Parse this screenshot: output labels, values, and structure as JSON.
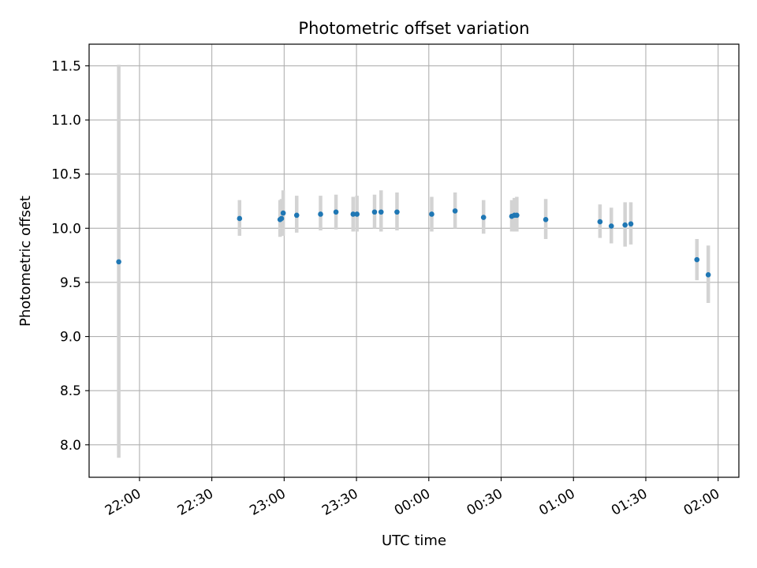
{
  "chart_data": {
    "type": "scatter",
    "title": "Photometric offset variation",
    "xlabel": "UTC time",
    "ylabel": "Photometric offset",
    "x_tick_labels": [
      "22:00",
      "22:30",
      "23:00",
      "23:30",
      "00:00",
      "00:30",
      "01:00",
      "01:30",
      "02:00"
    ],
    "x_tick_minutes": [
      0,
      30,
      60,
      90,
      120,
      150,
      180,
      210,
      240
    ],
    "y_tick_labels": [
      "8.0",
      "8.5",
      "9.0",
      "9.5",
      "10.0",
      "10.5",
      "11.0",
      "11.5"
    ],
    "y_tick_values": [
      8.0,
      8.5,
      9.0,
      9.5,
      10.0,
      10.5,
      11.0,
      11.5
    ],
    "xlim_minutes": [
      -20.9,
      248.6
    ],
    "ylim": [
      7.7,
      11.7
    ],
    "grid": true,
    "marker_color": "#1f77b4",
    "errorbar_color": "#d3d3d3",
    "points": [
      {
        "time": "21:51",
        "x": -8.6,
        "y": 9.69,
        "err_low": 7.88,
        "err_high": 11.51
      },
      {
        "time": "22:41",
        "x": 41.5,
        "y": 10.09,
        "err_low": 9.93,
        "err_high": 10.26
      },
      {
        "time": "22:58",
        "x": 58.3,
        "y": 10.08,
        "err_low": 9.92,
        "err_high": 10.26
      },
      {
        "time": "22:58",
        "x": 58.9,
        "y": 10.09,
        "err_low": 9.93,
        "err_high": 10.27
      },
      {
        "time": "22:59",
        "x": 59.6,
        "y": 10.14,
        "err_low": 9.93,
        "err_high": 10.35
      },
      {
        "time": "23:05",
        "x": 65.2,
        "y": 10.12,
        "err_low": 9.96,
        "err_high": 10.3
      },
      {
        "time": "23:15",
        "x": 75.1,
        "y": 10.13,
        "err_low": 9.98,
        "err_high": 10.3
      },
      {
        "time": "23:21",
        "x": 81.5,
        "y": 10.15,
        "err_low": 9.99,
        "err_high": 10.31
      },
      {
        "time": "23:28",
        "x": 88.6,
        "y": 10.13,
        "err_low": 9.97,
        "err_high": 10.29
      },
      {
        "time": "23:30",
        "x": 90.2,
        "y": 10.13,
        "err_low": 9.97,
        "err_high": 10.3
      },
      {
        "time": "23:37",
        "x": 97.5,
        "y": 10.15,
        "err_low": 10.0,
        "err_high": 10.31
      },
      {
        "time": "23:40",
        "x": 100.2,
        "y": 10.15,
        "err_low": 9.97,
        "err_high": 10.35
      },
      {
        "time": "23:47",
        "x": 106.8,
        "y": 10.15,
        "err_low": 9.98,
        "err_high": 10.33
      },
      {
        "time": "00:01",
        "x": 121.2,
        "y": 10.13,
        "err_low": 9.97,
        "err_high": 10.29
      },
      {
        "time": "00:11",
        "x": 130.9,
        "y": 10.16,
        "err_low": 10.0,
        "err_high": 10.33
      },
      {
        "time": "00:22",
        "x": 142.7,
        "y": 10.1,
        "err_low": 9.95,
        "err_high": 10.26
      },
      {
        "time": "00:34",
        "x": 154.4,
        "y": 10.11,
        "err_low": 9.97,
        "err_high": 10.26
      },
      {
        "time": "00:35",
        "x": 155.5,
        "y": 10.12,
        "err_low": 9.97,
        "err_high": 10.28
      },
      {
        "time": "00:36",
        "x": 156.5,
        "y": 10.12,
        "err_low": 9.97,
        "err_high": 10.29
      },
      {
        "time": "00:48",
        "x": 168.5,
        "y": 10.08,
        "err_low": 9.9,
        "err_high": 10.27
      },
      {
        "time": "01:11",
        "x": 191.0,
        "y": 10.06,
        "err_low": 9.91,
        "err_high": 10.22
      },
      {
        "time": "01:15",
        "x": 195.7,
        "y": 10.02,
        "err_low": 9.86,
        "err_high": 10.19
      },
      {
        "time": "01:21",
        "x": 201.4,
        "y": 10.03,
        "err_low": 9.83,
        "err_high": 10.24
      },
      {
        "time": "01:24",
        "x": 203.8,
        "y": 10.04,
        "err_low": 9.85,
        "err_high": 10.24
      },
      {
        "time": "01:51",
        "x": 231.2,
        "y": 9.71,
        "err_low": 9.52,
        "err_high": 9.9
      },
      {
        "time": "01:55",
        "x": 235.9,
        "y": 9.57,
        "err_low": 9.31,
        "err_high": 9.84
      }
    ]
  }
}
